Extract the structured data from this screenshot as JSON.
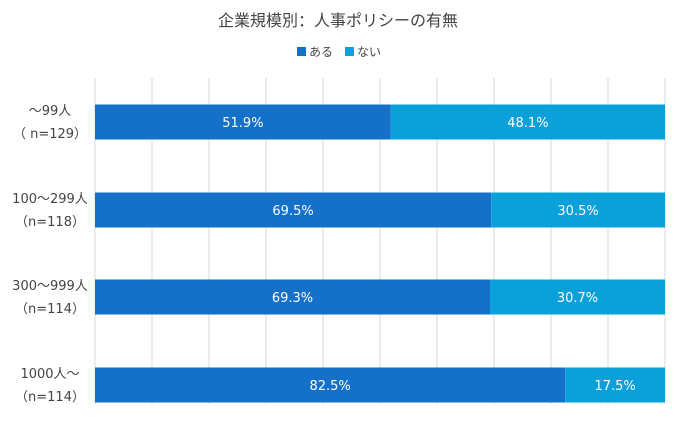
{
  "chart_data": {
    "type": "bar",
    "orientation": "horizontal",
    "stacked": "percent",
    "title": "企業規模別：人事ポリシーの有無",
    "legend_position": "top",
    "categories": [
      [
        "～99人",
        "（ n=129）"
      ],
      [
        "100～299人",
        "（n=118）"
      ],
      [
        "300～999人",
        "（n=114）"
      ],
      [
        "1000人～",
        "（n=114）"
      ]
    ],
    "series": [
      {
        "name": "ある",
        "color": "#1470c8",
        "values": [
          51.9,
          69.5,
          69.3,
          82.5
        ],
        "labels": [
          "51.9%",
          "69.5%",
          "69.3%",
          "82.5%"
        ]
      },
      {
        "name": "ない",
        "color": "#0aa0da",
        "values": [
          48.1,
          30.5,
          30.7,
          17.5
        ],
        "labels": [
          "48.1%",
          "30.5%",
          "30.7%",
          "17.5%"
        ]
      }
    ],
    "xlim": [
      0,
      100
    ],
    "grid": true
  }
}
